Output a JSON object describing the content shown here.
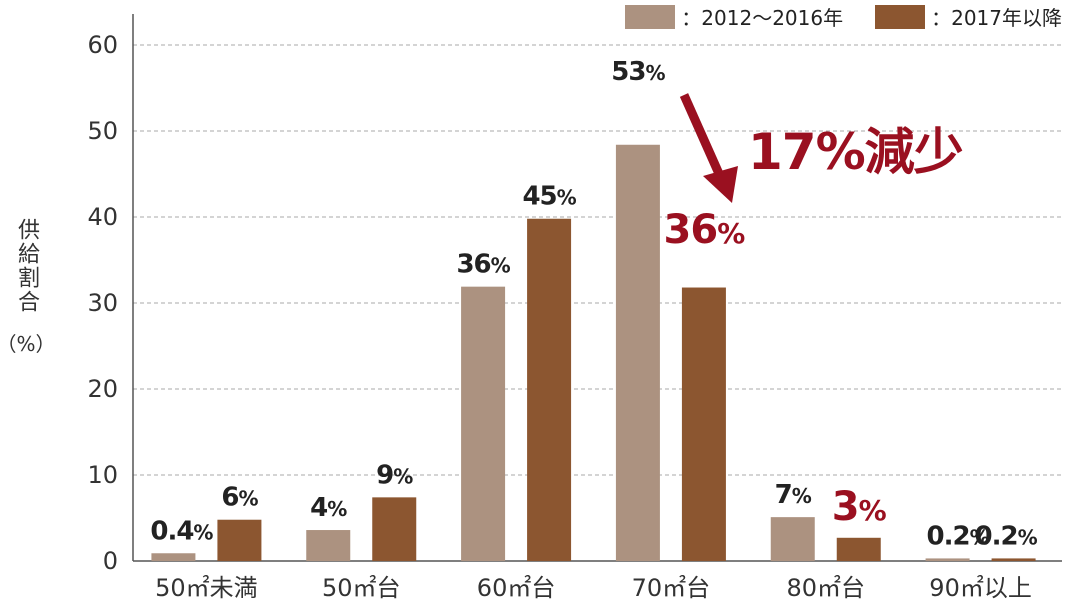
{
  "chart_data": {
    "type": "bar",
    "categories": [
      "50㎡未満",
      "50㎡台",
      "60㎡台",
      "70㎡台",
      "80㎡台",
      "90㎡以上"
    ],
    "series": [
      {
        "name": "：2012～2016年",
        "color": "#ac9280",
        "values": [
          0.4,
          4,
          36,
          53,
          7,
          0.2
        ],
        "bar_heights": [
          0.9,
          3.6,
          31.9,
          48.4,
          5.1,
          0.3
        ],
        "labels": [
          "0.4%",
          "4%",
          "36%",
          "53%",
          "7%",
          "0.2%"
        ],
        "label_colors": [
          "#222222",
          "#222222",
          "#222222",
          "#222222",
          "#222222",
          "#222222"
        ]
      },
      {
        "name": "：2017年以降",
        "color": "#8c5630",
        "values": [
          6,
          9,
          45,
          36,
          3,
          0.2
        ],
        "bar_heights": [
          4.8,
          7.4,
          39.8,
          31.8,
          2.7,
          0.3
        ],
        "labels": [
          "6%",
          "9%",
          "45%",
          "36%",
          "3%",
          "0.2%"
        ],
        "label_colors": [
          "#222222",
          "#222222",
          "#222222",
          "#9a1020",
          "#9a1020",
          "#222222"
        ]
      }
    ],
    "ylabel": "供給割合",
    "ylabel_unit": "（%）",
    "ylim": [
      0,
      60
    ],
    "yticks": [
      0,
      10,
      20,
      30,
      40,
      50,
      60
    ],
    "grid": true,
    "legend_position": "top-right",
    "annotation": "17%減少",
    "annotation_color": "#9a1020"
  }
}
